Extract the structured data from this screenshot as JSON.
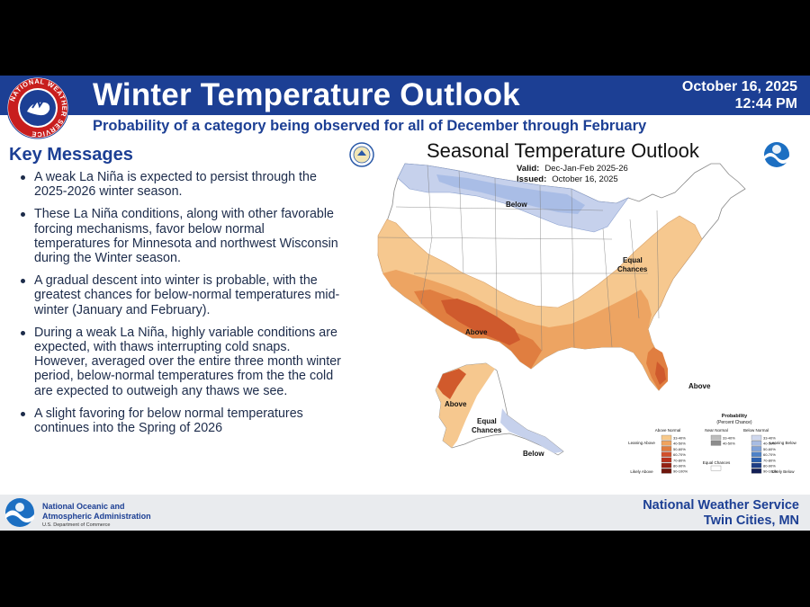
{
  "header": {
    "title": "Winter Temperature Outlook",
    "date": "October 16, 2025",
    "time": "12:44 PM",
    "subtitle": "Probability of a category being observed for all of December through February",
    "logo_text": "NATIONAL WEATHER SERVICE"
  },
  "key_messages": {
    "title": "Key Messages",
    "bullets": [
      "A weak La Niña is expected to persist through the 2025-2026 winter season.",
      "These La Niña conditions, along with other favorable forcing mechanisms, favor below normal temperatures for Minnesota and northwest Wisconsin during the Winter season.",
      "A gradual descent into winter is probable, with the greatest chances for below-normal temperatures mid-winter (January and February).",
      "During a weak La Niña, highly variable conditions are expected, with thaws interrupting cold snaps. However, averaged over the entire three month winter period, below-normal temperatures from the the cold are expected to outweigh any thaws we see.",
      "A slight favoring for below normal temperatures continues into the Spring of 2026"
    ]
  },
  "map": {
    "title": "Seasonal Temperature Outlook",
    "valid_label": "Valid:",
    "valid_value": "Dec-Jan-Feb 2025-26",
    "issued_label": "Issued:",
    "issued_value": "October 16, 2025",
    "region_labels": {
      "below_north": "Below",
      "equal_line1": "Equal",
      "equal_line2": "Chances",
      "above_sw": "Above",
      "above_fl": "Above",
      "above_ak": "Above",
      "equal_ak_line1": "Equal",
      "equal_ak_line2": "Chances",
      "below_ak": "Below"
    },
    "legend": {
      "title": "Probability",
      "subtitle": "(Percent Chance)",
      "above_header": "Above Normal",
      "near_header": "Near Normal",
      "below_header": "Below Normal",
      "leaning_above": "Leaning Above",
      "likely_above": "Likely Above",
      "leaning_below": "Leaning Below",
      "likely_below": "Likely Below",
      "equal_chances": "Equal Chances",
      "above_bins": [
        "33-40%",
        "40-50%",
        "50-60%",
        "60-70%",
        "70-80%",
        "80-90%",
        "90-100%"
      ],
      "near_bins": [
        "33-40%",
        "40-50%"
      ],
      "below_bins": [
        "33-40%",
        "40-50%",
        "50-60%",
        "60-70%",
        "70-80%",
        "80-90%",
        "90-100%"
      ],
      "above_colors": [
        "#f8c98a",
        "#f0a35e",
        "#e07b3e",
        "#d2502b",
        "#b8321d",
        "#952214",
        "#6e160c"
      ],
      "near_colors": [
        "#bdbdbd",
        "#8c8c8c"
      ],
      "below_colors": [
        "#cfd8ee",
        "#a7bce3",
        "#7fa2d9",
        "#4d82c8",
        "#2a5fae",
        "#1e3e86",
        "#131f55"
      ]
    },
    "colors": {
      "above_33_40": "#f6c88f",
      "above_40_50": "#eda462",
      "above_50_60": "#e07e40",
      "above_60_70": "#d15a2c",
      "below_33_40": "#c9d3ec",
      "below_40_50": "#adbfe5"
    }
  },
  "footer": {
    "noaa_line1": "National Oceanic and",
    "noaa_line2": "Atmospheric Administration",
    "noaa_sub": "U.S. Department of Commerce",
    "nws_line1": "National Weather Service",
    "nws_line2": "Twin Cities, MN"
  }
}
